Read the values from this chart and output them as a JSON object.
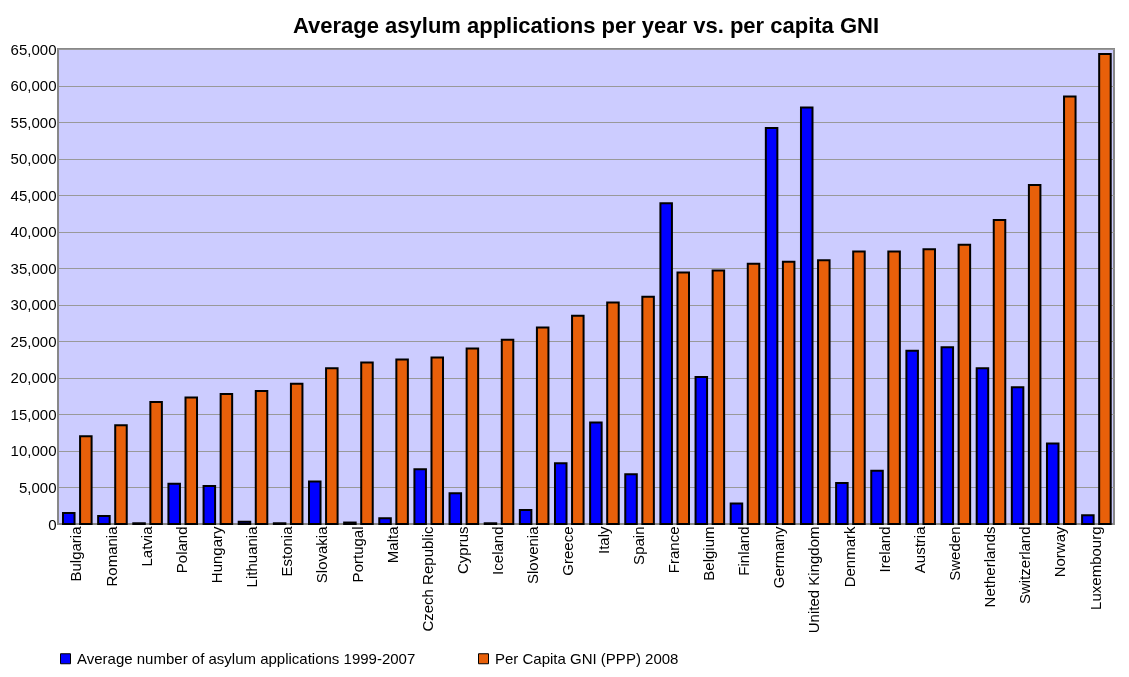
{
  "chart_data": {
    "type": "bar",
    "title": "Average asylum applications per year vs. per capita GNI",
    "categories": [
      "Bulgaria",
      "Romania",
      "Latvia",
      "Poland",
      "Hungary",
      "Lithuania",
      "Estonia",
      "Slovakia",
      "Portugal",
      "Malta",
      "Czech Republic",
      "Cyprus",
      "Iceland",
      "Slovenia",
      "Greece",
      "Italy",
      "Spain",
      "France",
      "Belgium",
      "Finland",
      "Germany",
      "United Kingdom",
      "Denmark",
      "Ireland",
      "Austria",
      "Sweden",
      "Netherlands",
      "Switzerland",
      "Norway",
      "Luxembourg"
    ],
    "series": [
      {
        "name": "Average number of asylum applications 1999-2007",
        "color": "#0000ff",
        "values": [
          1500,
          1100,
          100,
          5500,
          5200,
          300,
          100,
          5800,
          200,
          800,
          7500,
          4200,
          100,
          1900,
          8300,
          13900,
          6800,
          43900,
          20100,
          2800,
          54200,
          57000,
          5600,
          7300,
          23700,
          24200,
          21300,
          18700,
          11000,
          1200
        ]
      },
      {
        "name": "Per Capita GNI (PPP) 2008",
        "color": "#e8600a",
        "values": [
          12000,
          13500,
          16700,
          17300,
          17800,
          18200,
          19200,
          21300,
          22100,
          22500,
          22800,
          24000,
          25200,
          26900,
          28500,
          30300,
          31100,
          34400,
          34700,
          35600,
          35900,
          36100,
          37300,
          37300,
          37600,
          38200,
          41600,
          46400,
          58500,
          64300
        ]
      }
    ],
    "ylim": [
      0,
      65000
    ],
    "yticks": [
      0,
      {
        "value": 5000,
        "label": "5,000"
      },
      {
        "value": 10000,
        "label": "10,000"
      },
      {
        "value": 15000,
        "label": "15,000"
      },
      {
        "value": 20000,
        "label": "20,000"
      },
      {
        "value": 25000,
        "label": "25,000"
      },
      {
        "value": 30000,
        "label": "30,000"
      },
      {
        "value": 35000,
        "label": "35,000"
      },
      {
        "value": 40000,
        "label": "40,000"
      },
      {
        "value": 45000,
        "label": "45,000"
      },
      {
        "value": 50000,
        "label": "50,000"
      },
      {
        "value": 55000,
        "label": "55,000"
      },
      {
        "value": 60000,
        "label": "60,000"
      },
      {
        "value": 65000,
        "label": "65,000"
      }
    ],
    "grid": "y",
    "legend": "bottom"
  }
}
